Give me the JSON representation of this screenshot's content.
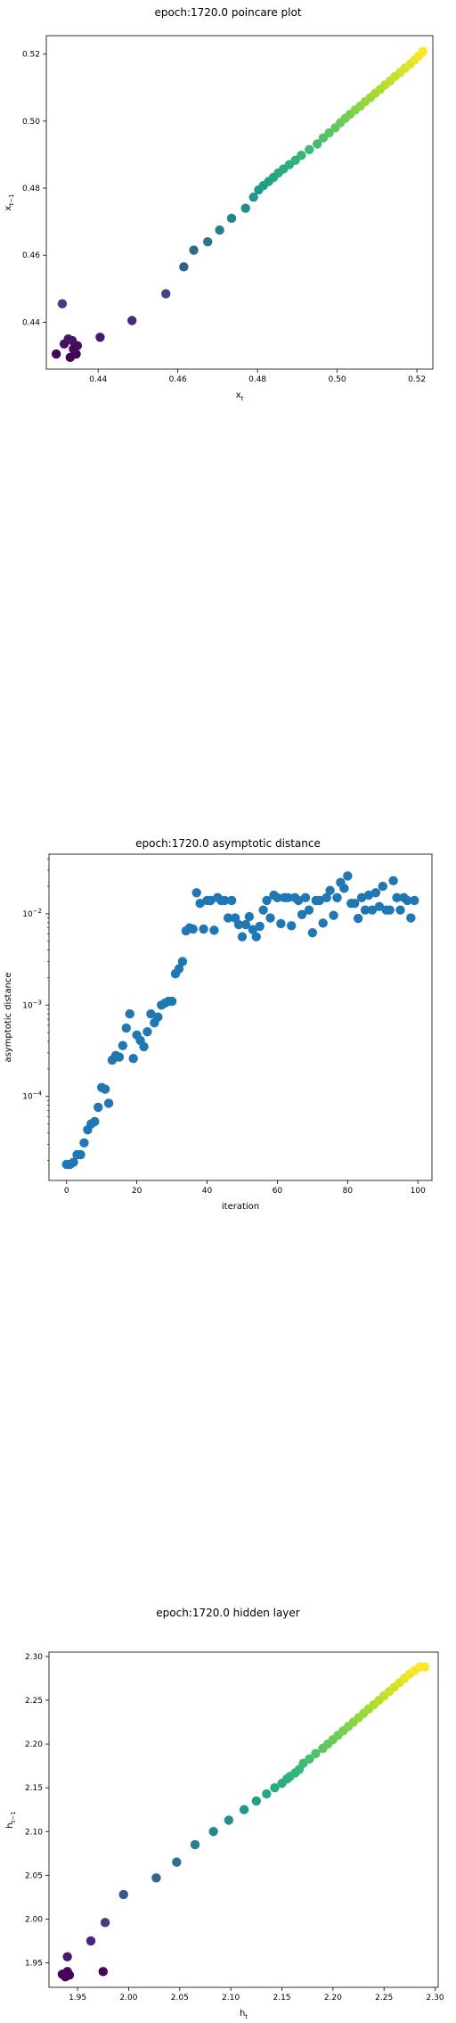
{
  "chart_data": [
    {
      "type": "scatter",
      "title": "epoch:1720.0 poincare plot",
      "xlabel": "x_t",
      "ylabel": "x_{t-1}",
      "xlim": [
        0.427,
        0.524
      ],
      "ylim": [
        0.426,
        0.5255
      ],
      "xticks": [
        0.44,
        0.46,
        0.48,
        0.5,
        0.52
      ],
      "xtick_labels": [
        "0.44",
        "0.46",
        "0.48",
        "0.50",
        "0.52"
      ],
      "yticks": [
        0.44,
        0.46,
        0.48,
        0.5,
        0.52
      ],
      "ytick_labels": [
        "0.44",
        "0.46",
        "0.48",
        "0.50",
        "0.52"
      ],
      "colormap": "viridis",
      "grid": false,
      "x": [
        0.4295,
        0.4315,
        0.433,
        0.4335,
        0.4345,
        0.4325,
        0.4348,
        0.4338,
        0.431,
        0.4405,
        0.4485,
        0.457,
        0.4615,
        0.464,
        0.4675,
        0.4705,
        0.4735,
        0.477,
        0.479,
        0.4803,
        0.4815,
        0.4828,
        0.484,
        0.4852,
        0.4865,
        0.488,
        0.4895,
        0.491,
        0.493,
        0.495,
        0.4965,
        0.498,
        0.4995,
        0.5008,
        0.502,
        0.5032,
        0.5045,
        0.5058,
        0.507,
        0.5083,
        0.5095,
        0.5108,
        0.512,
        0.5133,
        0.5145,
        0.5158,
        0.517,
        0.5183,
        0.5195,
        0.5205,
        0.5215
      ],
      "y": [
        0.4305,
        0.4335,
        0.4295,
        0.4345,
        0.4305,
        0.435,
        0.433,
        0.432,
        0.4455,
        0.4355,
        0.4405,
        0.4485,
        0.4565,
        0.4615,
        0.464,
        0.4675,
        0.471,
        0.474,
        0.4773,
        0.4795,
        0.4808,
        0.482,
        0.4832,
        0.4845,
        0.4857,
        0.487,
        0.4883,
        0.4898,
        0.4915,
        0.4932,
        0.495,
        0.4965,
        0.498,
        0.4995,
        0.5008,
        0.502,
        0.5033,
        0.5045,
        0.5058,
        0.507,
        0.5083,
        0.5095,
        0.5108,
        0.512,
        0.5133,
        0.5145,
        0.5158,
        0.517,
        0.5183,
        0.5195,
        0.5208
      ]
    },
    {
      "type": "scatter",
      "title": "epoch:1720.0 asymptotic distance",
      "xlabel": "iteration",
      "ylabel": "asymptotic distance",
      "yscale": "log",
      "xlim": [
        -5,
        104
      ],
      "ylim": [
        1.2e-05,
        0.045
      ],
      "xticks": [
        0,
        20,
        40,
        60,
        80,
        100
      ],
      "xtick_labels": [
        "0",
        "20",
        "40",
        "60",
        "80",
        "100"
      ],
      "yticks": [
        0.0001,
        0.001,
        0.01
      ],
      "ytick_labels": [
        "10^-4",
        "10^-3",
        "10^-2"
      ],
      "color": "#1f77b4",
      "grid": false,
      "x": [
        0,
        1,
        2,
        3,
        4,
        5,
        6,
        7,
        8,
        9,
        10,
        11,
        12,
        13,
        14,
        15,
        16,
        17,
        18,
        19,
        20,
        21,
        22,
        23,
        24,
        25,
        26,
        27,
        28,
        29,
        30,
        31,
        32,
        33,
        34,
        35,
        36,
        37,
        38,
        39,
        40,
        41,
        42,
        43,
        44,
        45,
        46,
        47,
        48,
        49,
        50,
        51,
        52,
        53,
        54,
        55,
        56,
        57,
        58,
        59,
        60,
        61,
        62,
        63,
        64,
        65,
        66,
        67,
        68,
        69,
        70,
        71,
        72,
        73,
        74,
        75,
        76,
        77,
        78,
        79,
        80,
        81,
        82,
        83,
        84,
        85,
        86,
        87,
        88,
        89,
        90,
        91,
        92,
        93,
        94,
        95,
        96,
        97,
        98,
        99
      ],
      "y": [
        1.8e-05,
        1.8e-05,
        1.9e-05,
        2.3e-05,
        2.3e-05,
        3.1e-05,
        4.3e-05,
        5e-05,
        5.3e-05,
        7.6e-05,
        0.000125,
        0.00012,
        8.4e-05,
        0.00025,
        0.00028,
        0.00027,
        0.00036,
        0.00056,
        0.0008,
        0.00026,
        0.00047,
        0.00041,
        0.00035,
        0.00051,
        0.0008,
        0.00064,
        0.00074,
        0.001,
        0.00105,
        0.0011,
        0.0011,
        0.0022,
        0.0025,
        0.003,
        0.0065,
        0.007,
        0.0068,
        0.017,
        0.013,
        0.0068,
        0.014,
        0.014,
        0.0066,
        0.015,
        0.014,
        0.014,
        0.009,
        0.014,
        0.009,
        0.0076,
        0.0056,
        0.0076,
        0.0093,
        0.0067,
        0.0056,
        0.0073,
        0.011,
        0.014,
        0.009,
        0.016,
        0.015,
        0.0078,
        0.015,
        0.015,
        0.0074,
        0.015,
        0.014,
        0.0098,
        0.015,
        0.011,
        0.0062,
        0.014,
        0.014,
        0.0079,
        0.015,
        0.018,
        0.0096,
        0.015,
        0.022,
        0.019,
        0.026,
        0.013,
        0.013,
        0.0089,
        0.015,
        0.011,
        0.016,
        0.011,
        0.017,
        0.012,
        0.02,
        0.011,
        0.011,
        0.023,
        0.015,
        0.011,
        0.015,
        0.014,
        0.009,
        0.014
      ]
    },
    {
      "type": "scatter",
      "title": "epoch:1720.0 hidden layer",
      "xlabel": "h_t",
      "ylabel": "h_{t-1}",
      "xlim": [
        1.922,
        2.303
      ],
      "ylim": [
        1.922,
        2.305
      ],
      "xticks": [
        1.95,
        2.0,
        2.05,
        2.1,
        2.15,
        2.2,
        2.25,
        2.3
      ],
      "xtick_labels": [
        "1.95",
        "2.00",
        "2.05",
        "2.10",
        "2.15",
        "2.20",
        "2.25",
        "2.30"
      ],
      "yticks": [
        1.95,
        2.0,
        2.05,
        2.1,
        2.15,
        2.2,
        2.25,
        2.3
      ],
      "ytick_labels": [
        "1.95",
        "2.00",
        "2.05",
        "2.10",
        "2.15",
        "2.20",
        "2.25",
        "2.30"
      ],
      "colormap": "viridis",
      "grid": false,
      "x": [
        1.935,
        1.938,
        1.94,
        1.942,
        1.94,
        1.963,
        1.975,
        1.977,
        1.995,
        2.027,
        2.047,
        2.065,
        2.083,
        2.098,
        2.113,
        2.125,
        2.135,
        2.143,
        2.15,
        2.155,
        2.158,
        2.163,
        2.167,
        2.171,
        2.177,
        2.183,
        2.19,
        2.195,
        2.2,
        2.205,
        2.21,
        2.215,
        2.22,
        2.225,
        2.23,
        2.235,
        2.24,
        2.245,
        2.25,
        2.255,
        2.26,
        2.265,
        2.27,
        2.275,
        2.28,
        2.285,
        2.29
      ],
      "y": [
        1.937,
        1.934,
        1.94,
        1.936,
        1.957,
        1.975,
        1.94,
        1.996,
        2.028,
        2.047,
        2.065,
        2.085,
        2.1,
        2.113,
        2.125,
        2.135,
        2.143,
        2.15,
        2.155,
        2.16,
        2.163,
        2.167,
        2.171,
        2.178,
        2.183,
        2.189,
        2.195,
        2.2,
        2.205,
        2.21,
        2.215,
        2.22,
        2.225,
        2.23,
        2.235,
        2.24,
        2.245,
        2.25,
        2.255,
        2.26,
        2.265,
        2.27,
        2.275,
        2.28,
        2.284,
        2.288,
        2.288
      ]
    }
  ]
}
